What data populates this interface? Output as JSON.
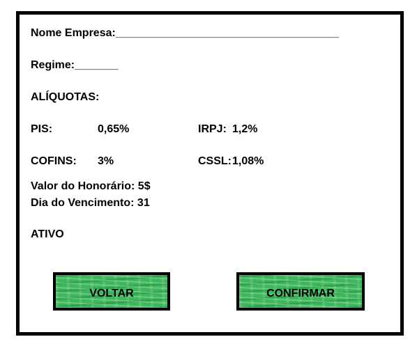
{
  "form": {
    "company_label": "Nome Empresa:____________________________________",
    "regime_label": "Regime:_______",
    "rates_heading": "ALÍQUOTAS:",
    "pis_label": "PIS:",
    "pis_value": "0,65%",
    "irpj_label": "IRPJ:",
    "irpj_value": "1,2%",
    "cofins_label": "COFINS:",
    "cofins_value": "3%",
    "cssl_label": "CSSL:",
    "cssl_value": "1,08%",
    "fee_label": "Valor do Honorário: 5$",
    "due_day_label": "Dia do Vencimento: 31",
    "status": "ATIVO"
  },
  "buttons": {
    "back_label": "VOLTAR",
    "confirm_label": "CONFIRMAR"
  },
  "colors": {
    "button_green": "#3cb85b",
    "border": "#000000"
  }
}
